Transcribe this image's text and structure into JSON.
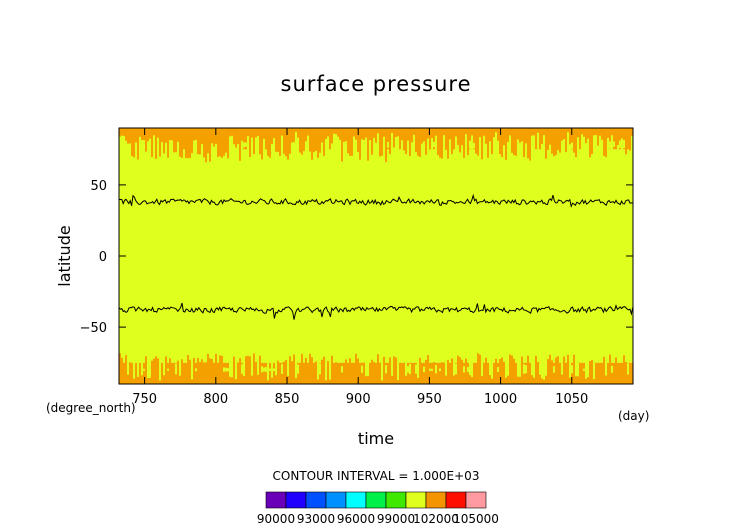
{
  "chart_data": {
    "type": "heatmap",
    "title": "surface pressure",
    "xlabel": "time",
    "ylabel": "latitude",
    "x_unit": "(day)",
    "y_unit": "(degree_north)",
    "xlim": [
      732,
      1093
    ],
    "ylim": [
      -90,
      90
    ],
    "x_ticks": [
      750,
      800,
      850,
      900,
      950,
      1000,
      1050
    ],
    "y_ticks": [
      -50,
      0,
      50
    ],
    "x_tick_labels": [
      "750",
      "800",
      "850",
      "900",
      "950",
      "1000",
      "1050"
    ],
    "y_tick_labels": [
      "−50",
      "0",
      "50"
    ],
    "field_bands": [
      {
        "lat_range": [
          -90,
          -75
        ],
        "level": "102000-103000",
        "color": "#f4a100"
      },
      {
        "lat_range": [
          -75,
          75
        ],
        "level": "101000-102000",
        "color": "#dfff1f"
      },
      {
        "lat_range": [
          75,
          90
        ],
        "level": "102000-103000",
        "color": "#f4a100"
      }
    ],
    "contour_lines": [
      {
        "mean_latitude": 38,
        "amplitude": 4
      },
      {
        "mean_latitude": -38,
        "amplitude": 4
      }
    ],
    "contour_interval_text": "CONTOUR INTERVAL = 1.000E+03",
    "colorbar": {
      "colors": [
        "#6a00b8",
        "#2200ff",
        "#0050ff",
        "#0090ff",
        "#00ffff",
        "#00f04a",
        "#40e800",
        "#dfff1f",
        "#f49400",
        "#ff1000",
        "#ff9aa0"
      ],
      "tick_labels": [
        "90000",
        "93000",
        "96000",
        "99000",
        "102000",
        "105000"
      ]
    }
  }
}
